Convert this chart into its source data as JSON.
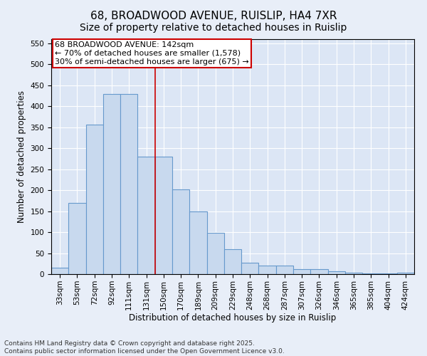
{
  "title": "68, BROADWOOD AVENUE, RUISLIP, HA4 7XR",
  "subtitle": "Size of property relative to detached houses in Ruislip",
  "xlabel": "Distribution of detached houses by size in Ruislip",
  "ylabel": "Number of detached properties",
  "categories": [
    "33sqm",
    "53sqm",
    "72sqm",
    "92sqm",
    "111sqm",
    "131sqm",
    "150sqm",
    "170sqm",
    "189sqm",
    "209sqm",
    "229sqm",
    "248sqm",
    "268sqm",
    "287sqm",
    "307sqm",
    "326sqm",
    "346sqm",
    "365sqm",
    "385sqm",
    "404sqm",
    "424sqm"
  ],
  "values": [
    15,
    170,
    357,
    430,
    430,
    280,
    280,
    202,
    150,
    98,
    59,
    27,
    20,
    20,
    12,
    12,
    6,
    3,
    2,
    1,
    3
  ],
  "bar_color": "#c8d9ee",
  "bar_edge_color": "#6699cc",
  "marker_line_color": "#cc0000",
  "ylim": [
    0,
    560
  ],
  "yticks": [
    0,
    50,
    100,
    150,
    200,
    250,
    300,
    350,
    400,
    450,
    500,
    550
  ],
  "annotation_line1": "68 BROADWOOD AVENUE: 142sqm",
  "annotation_line2": "← 70% of detached houses are smaller (1,578)",
  "annotation_line3": "30% of semi-detached houses are larger (675) →",
  "annotation_box_color": "#cc0000",
  "footer": "Contains HM Land Registry data © Crown copyright and database right 2025.\nContains public sector information licensed under the Open Government Licence v3.0.",
  "background_color": "#e8eef8",
  "plot_bg_color": "#dce6f5",
  "grid_color": "#ffffff",
  "title_fontsize": 11,
  "axis_label_fontsize": 8.5,
  "tick_fontsize": 7.5,
  "footer_fontsize": 6.5,
  "annotation_fontsize": 8
}
